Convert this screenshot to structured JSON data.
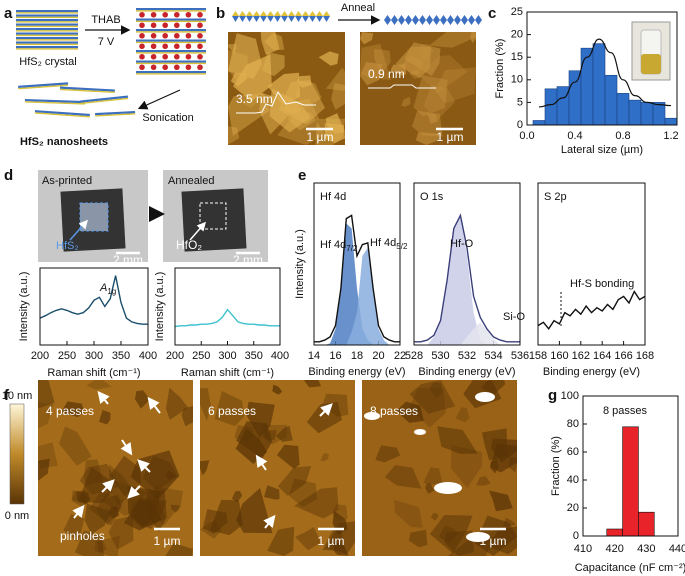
{
  "panels": [
    "a",
    "b",
    "c",
    "d",
    "e",
    "f",
    "g"
  ],
  "a": {
    "crystal": "HfS₂ crystal",
    "reagent": "THAB",
    "voltage": "7 V",
    "step": "Sonication",
    "product": "HfS₂ nanosheets"
  },
  "b": {
    "step": "Anneal",
    "heights": [
      "3.5 nm",
      "0.9 nm"
    ],
    "scale": [
      "1 µm",
      "1 µm"
    ]
  },
  "d": {
    "labels": [
      "As-printed",
      "Annealed"
    ],
    "materials": [
      "HfS₂",
      "HfO₂"
    ],
    "scale": [
      "2 mm",
      "2 mm"
    ]
  },
  "f": {
    "labels": [
      "4 passes",
      "6 passes",
      "8 passes"
    ],
    "scale": [
      "1 µm",
      "1 µm",
      "1 µm"
    ],
    "annotation": "pinholes",
    "colorbar": [
      "10 nm",
      "0 nm"
    ]
  },
  "chart_data": [
    {
      "type": "histogram",
      "xlabel": "Lateral size (µm)",
      "ylabel": "Fraction (%)",
      "bins": [
        0.05,
        0.15,
        0.25,
        0.35,
        0.45,
        0.55,
        0.65,
        0.75,
        0.85,
        0.95,
        1.05,
        1.15,
        1.25
      ],
      "values": [
        1,
        8,
        8.5,
        12,
        17,
        18,
        11,
        7,
        5.5,
        5,
        5,
        1.5
      ],
      "color": "#2f6fc8",
      "fit": {
        "color": "#111111",
        "x": [
          0.1,
          0.2,
          0.3,
          0.4,
          0.5,
          0.6,
          0.7,
          0.8,
          0.9,
          1.0,
          1.1,
          1.2
        ],
        "values": [
          4,
          4.5,
          6,
          9.5,
          15,
          19,
          16,
          10,
          6.5,
          5,
          4.5,
          4.3
        ]
      },
      "xlim": [
        0,
        1.25
      ],
      "xticks": [
        {
          "value": 0,
          "label": "0.0"
        },
        0.4,
        0.8,
        1.2
      ],
      "ylim": [
        0,
        25
      ],
      "yticks": [
        0,
        5,
        10,
        15,
        20,
        25
      ]
    },
    {
      "type": "line",
      "xlabel": "Raman shift (cm⁻¹)",
      "ylabel": "Intensity (a.u.)",
      "x": [
        200,
        210,
        220,
        230,
        240,
        250,
        260,
        270,
        280,
        290,
        300,
        310,
        320,
        330,
        340,
        350,
        360,
        370,
        380,
        390,
        400
      ],
      "values": [
        0.35,
        0.38,
        0.42,
        0.45,
        0.47,
        0.45,
        0.42,
        0.4,
        0.42,
        0.48,
        0.58,
        0.62,
        0.5,
        0.6,
        0.9,
        0.55,
        0.35,
        0.3,
        0.28,
        0.27,
        0.27
      ],
      "color": "#1b4f6b",
      "xlim": [
        200,
        400
      ],
      "xticks": [
        200,
        250,
        300,
        350,
        400
      ],
      "ylim": [
        0,
        1
      ],
      "annotations": [
        {
          "main": "A",
          "sub": "1g"
        }
      ]
    },
    {
      "type": "line",
      "xlabel": "Raman shift (cm⁻¹)",
      "ylabel": "Intensity (a.u.)",
      "x": [
        200,
        210,
        220,
        230,
        240,
        250,
        260,
        270,
        280,
        290,
        300,
        310,
        320,
        330,
        340,
        350,
        360,
        370,
        380,
        390,
        400
      ],
      "values": [
        0.24,
        0.25,
        0.25,
        0.26,
        0.26,
        0.27,
        0.27,
        0.28,
        0.3,
        0.36,
        0.46,
        0.38,
        0.3,
        0.28,
        0.27,
        0.27,
        0.26,
        0.26,
        0.25,
        0.25,
        0.25
      ],
      "color": "#3cc0d0",
      "xlim": [
        200,
        400
      ],
      "xticks": [
        200,
        250,
        300,
        350,
        400
      ],
      "ylim": [
        0,
        1
      ]
    },
    {
      "type": "line",
      "title": "Hf 4d",
      "xlabel": "Binding energy (eV)",
      "ylabel": "Intensity (a.u.)",
      "x": [
        14,
        14.5,
        15,
        15.5,
        16,
        16.5,
        17,
        17.5,
        18,
        18.5,
        19,
        19.5,
        20,
        20.5,
        21,
        21.5,
        22
      ],
      "values": [
        0.02,
        0.02,
        0.03,
        0.05,
        0.12,
        0.35,
        0.78,
        0.8,
        0.55,
        0.62,
        0.63,
        0.35,
        0.12,
        0.05,
        0.03,
        0.02,
        0.02
      ],
      "color": "#111111",
      "components": [
        {
          "color": "#4f7fc4",
          "values": [
            0,
            0,
            0,
            0.01,
            0.1,
            0.33,
            0.75,
            0.72,
            0.35,
            0.1,
            0.03,
            0,
            0,
            0,
            0,
            0,
            0
          ]
        },
        {
          "color": "#8aaede",
          "values": [
            0,
            0,
            0,
            0,
            0,
            0,
            0,
            0.08,
            0.2,
            0.55,
            0.6,
            0.33,
            0.1,
            0.03,
            0,
            0,
            0
          ]
        }
      ],
      "xlim": [
        14,
        22
      ],
      "xticks": [
        14,
        16,
        18,
        20,
        22
      ],
      "ylim": [
        0,
        1
      ],
      "annotations": [
        {
          "main": "Hf 4d",
          "sub": "7/2"
        },
        {
          "main": "Hf 4d",
          "sub": "5/2"
        }
      ]
    },
    {
      "type": "line",
      "title": "O 1s",
      "xlabel": "Binding energy (eV)",
      "x": [
        528,
        528.5,
        529,
        529.5,
        530,
        530.5,
        531,
        531.5,
        532,
        532.5,
        533,
        533.5,
        534,
        534.5,
        535,
        535.5,
        536
      ],
      "values": [
        0.02,
        0.02,
        0.03,
        0.06,
        0.15,
        0.4,
        0.72,
        0.8,
        0.6,
        0.3,
        0.17,
        0.1,
        0.05,
        0.03,
        0.02,
        0.02,
        0.02
      ],
      "color": "#3a3f7a",
      "components": [
        {
          "color": "#c9cbe8",
          "values": [
            0,
            0,
            0,
            0.05,
            0.14,
            0.4,
            0.72,
            0.8,
            0.55,
            0.2,
            0.03,
            0,
            0,
            0,
            0,
            0,
            0
          ]
        },
        {
          "color": "#e4e4ee",
          "values": [
            0,
            0,
            0,
            0,
            0,
            0,
            0,
            0,
            0.05,
            0.1,
            0.14,
            0.09,
            0.04,
            0,
            0,
            0,
            0
          ]
        }
      ],
      "xlim": [
        528,
        536
      ],
      "xticks": [
        528,
        530,
        532,
        534,
        536
      ],
      "ylim": [
        0,
        1
      ],
      "annotations": [
        "Hf-O",
        "Si-O"
      ]
    },
    {
      "type": "line",
      "title": "S 2p",
      "xlabel": "Binding energy (eV)",
      "x": [
        158,
        158.5,
        159,
        159.5,
        160,
        160.5,
        161,
        161.5,
        162,
        162.5,
        163,
        163.5,
        164,
        164.5,
        165,
        165.5,
        166,
        166.5,
        167,
        167.5,
        168
      ],
      "values": [
        0.12,
        0.14,
        0.1,
        0.15,
        0.13,
        0.2,
        0.18,
        0.22,
        0.19,
        0.24,
        0.2,
        0.23,
        0.21,
        0.25,
        0.22,
        0.28,
        0.3,
        0.26,
        0.33,
        0.28,
        0.3
      ],
      "color": "#111111",
      "xlim": [
        158,
        168
      ],
      "xticks": [
        158,
        160,
        162,
        164,
        166,
        168
      ],
      "ylim": [
        0,
        1
      ],
      "annotations": [
        "Hf-S bonding"
      ]
    },
    {
      "type": "bar",
      "xlabel": "Capacitance (nF cm⁻²)",
      "ylabel": "Fraction (%)",
      "annotation": "8 passes",
      "x": [
        420,
        425,
        430
      ],
      "values": [
        5,
        78,
        17
      ],
      "width": 5,
      "color": "#e8242a",
      "xlim": [
        410,
        440
      ],
      "xticks": [
        410,
        420,
        430,
        440
      ],
      "ylim": [
        0,
        100
      ],
      "yticks": [
        0,
        20,
        40,
        60,
        80,
        100
      ]
    }
  ]
}
